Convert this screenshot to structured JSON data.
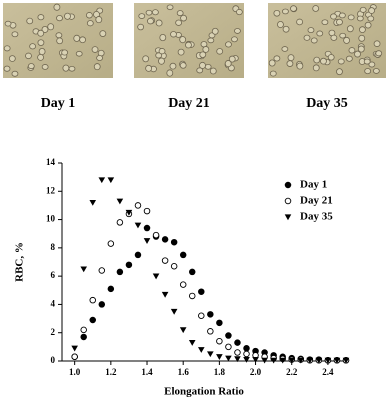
{
  "images": {
    "labels": [
      "Day 1",
      "Day 21",
      "Day 35"
    ]
  },
  "chart_data": {
    "type": "scatter",
    "xlabel": "Elongation Ratio",
    "ylabel": "RBC, %",
    "x": [
      1.0,
      1.05,
      1.1,
      1.15,
      1.2,
      1.25,
      1.3,
      1.35,
      1.4,
      1.45,
      1.5,
      1.55,
      1.6,
      1.65,
      1.7,
      1.75,
      1.8,
      1.85,
      1.9,
      1.95,
      2.0,
      2.05,
      2.1,
      2.15,
      2.2,
      2.25,
      2.3,
      2.35,
      2.4,
      2.45,
      2.5
    ],
    "series": [
      {
        "name": "Day 1",
        "color": "#000000",
        "marker": "filled-circle",
        "values": [
          0.3,
          1.7,
          2.9,
          4.0,
          5.1,
          6.3,
          6.8,
          7.5,
          9.4,
          8.8,
          8.6,
          8.4,
          7.5,
          6.3,
          4.9,
          3.3,
          2.7,
          1.8,
          1.3,
          0.9,
          0.7,
          0.6,
          0.4,
          0.3,
          0.2,
          0.15,
          0.1,
          0.1,
          0.05,
          0.05,
          0.05
        ]
      },
      {
        "name": "Day 21",
        "color": "#000000",
        "marker": "open-circle",
        "values": [
          0.3,
          2.2,
          4.3,
          6.4,
          8.3,
          9.8,
          10.4,
          11.0,
          10.6,
          8.9,
          7.1,
          6.7,
          5.4,
          4.6,
          3.2,
          2.1,
          1.4,
          1.0,
          0.6,
          0.5,
          0.4,
          0.3,
          0.2,
          0.15,
          0.1,
          0.1,
          0.05,
          0.05,
          0.05,
          0.05,
          0.05
        ]
      },
      {
        "name": "Day 35",
        "color": "#000000",
        "marker": "triangle-down",
        "values": [
          0.9,
          6.5,
          11.2,
          12.8,
          12.8,
          11.3,
          10.5,
          9.6,
          8.5,
          6.0,
          4.7,
          3.5,
          2.2,
          1.3,
          0.8,
          0.5,
          0.3,
          0.2,
          0.15,
          0.1,
          0.1,
          0.05,
          0.05,
          0.05,
          0.05,
          0.05,
          0.05,
          0.05,
          0.05,
          0.05,
          0.05
        ]
      }
    ],
    "xlim": [
      0.93,
      2.5
    ],
    "xticks": [
      {
        "value": 1,
        "label": "1.0"
      },
      1.2,
      1.4,
      1.6,
      1.8,
      {
        "value": 2,
        "label": "2.0"
      },
      2.2,
      2.4
    ],
    "ylim": [
      0,
      14
    ],
    "yticks": [
      0,
      2,
      4,
      6,
      8,
      10,
      12,
      14
    ],
    "legend": "upper right"
  }
}
